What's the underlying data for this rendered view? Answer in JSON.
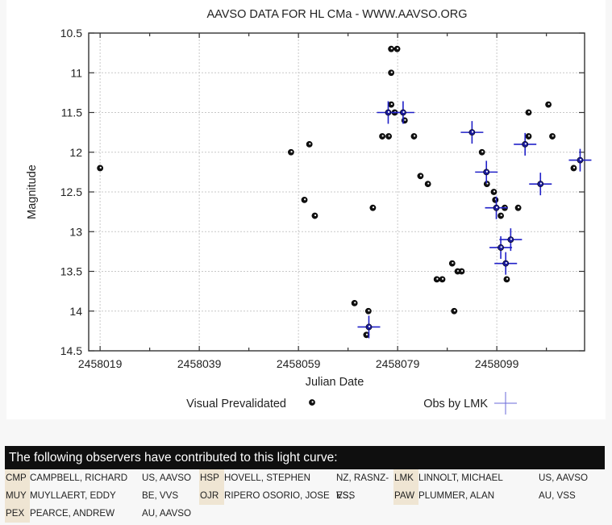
{
  "chart_data": {
    "type": "scatter",
    "title": "AAVSO DATA FOR HL CMa - WWW.AAVSO.ORG",
    "xlabel": "Julian Date",
    "ylabel": "Magnitude",
    "xlim": [
      2458016.7,
      2458116.7
    ],
    "ylim": [
      10.5,
      14.5
    ],
    "y_inverted": true,
    "grid": true,
    "x_ticks": [
      2458019,
      2458039,
      2458059,
      2458079,
      2458099
    ],
    "x_minor_ticks": [
      2458029,
      2458049,
      2458069,
      2458089,
      2458109
    ],
    "y_ticks": [
      10.5,
      11,
      11.5,
      12,
      12.5,
      13,
      13.5,
      14,
      14.5
    ],
    "y_tick_labels": [
      "10.5",
      "11",
      "11.5",
      "12",
      "12.5",
      "13",
      "13.5",
      "14",
      "14.5"
    ],
    "legend_placement": "bottom",
    "series": [
      {
        "name": "Visual Prevalidated",
        "marker": "circle-dot",
        "color": "#000000",
        "points": [
          [
            2458019.0,
            12.2
          ],
          [
            2458057.5,
            12.0
          ],
          [
            2458060.2,
            12.6
          ],
          [
            2458061.2,
            11.9
          ],
          [
            2458062.3,
            12.8
          ],
          [
            2458070.3,
            13.9
          ],
          [
            2458073.1,
            14.0
          ],
          [
            2458072.7,
            14.3
          ],
          [
            2458074.0,
            12.7
          ],
          [
            2458075.9,
            11.8
          ],
          [
            2458077.2,
            11.8
          ],
          [
            2458077.7,
            10.7
          ],
          [
            2458078.9,
            10.7
          ],
          [
            2458077.7,
            11.0
          ],
          [
            2458077.7,
            11.4
          ],
          [
            2458078.4,
            11.5
          ],
          [
            2458080.4,
            11.6
          ],
          [
            2458082.3,
            11.8
          ],
          [
            2458083.6,
            12.3
          ],
          [
            2458085.1,
            12.4
          ],
          [
            2458086.9,
            13.6
          ],
          [
            2458088.0,
            13.6
          ],
          [
            2458090.0,
            13.4
          ],
          [
            2458091.1,
            13.5
          ],
          [
            2458091.9,
            13.5
          ],
          [
            2458090.4,
            14.0
          ],
          [
            2458096.0,
            12.0
          ],
          [
            2458097.0,
            12.4
          ],
          [
            2458098.4,
            12.5
          ],
          [
            2458098.7,
            12.6
          ],
          [
            2458100.6,
            12.7
          ],
          [
            2458103.3,
            12.7
          ],
          [
            2458099.8,
            12.8
          ],
          [
            2458101.0,
            13.6
          ],
          [
            2458105.4,
            11.5
          ],
          [
            2458105.4,
            11.8
          ],
          [
            2458109.4,
            11.4
          ],
          [
            2458110.2,
            11.8
          ],
          [
            2458114.5,
            12.2
          ]
        ]
      },
      {
        "name": "Obs by LMK",
        "marker": "cross-errorbar",
        "color": "#2020c8",
        "points": [
          [
            2458077.1,
            11.5
          ],
          [
            2458080.1,
            11.5
          ],
          [
            2458094.0,
            11.75
          ],
          [
            2458096.9,
            12.25
          ],
          [
            2458098.9,
            12.7
          ],
          [
            2458099.8,
            13.2
          ],
          [
            2458101.8,
            13.1
          ],
          [
            2458100.8,
            13.4
          ],
          [
            2458104.7,
            11.9
          ],
          [
            2458107.8,
            12.4
          ],
          [
            2458115.8,
            12.1
          ],
          [
            2458073.2,
            14.2
          ]
        ]
      }
    ]
  },
  "observers": {
    "header": "The following observers have contributed to this light curve:",
    "rows": [
      [
        {
          "code": "CMP",
          "name": "CAMPBELL, RICHARD",
          "location": "US, AAVSO"
        },
        {
          "code": "HSP",
          "name": "HOVELL, STEPHEN",
          "location": "NZ, RASNZ-VSS"
        },
        {
          "code": "LMK",
          "name": "LINNOLT, MICHAEL",
          "location": "US, AAVSO"
        }
      ],
      [
        {
          "code": "MUY",
          "name": "MUYLLAERT, EDDY",
          "location": "BE, VVS"
        },
        {
          "code": "OJR",
          "name": "RIPERO OSORIO, JOSE",
          "location": "ES,"
        },
        {
          "code": "PAW",
          "name": "PLUMMER, ALAN",
          "location": "AU, VSS"
        }
      ],
      [
        {
          "code": "PEX",
          "name": "PEARCE, ANDREW",
          "location": "AU, AAVSO"
        },
        {
          "code": "",
          "name": "",
          "location": ""
        },
        {
          "code": "",
          "name": "",
          "location": ""
        }
      ]
    ]
  }
}
